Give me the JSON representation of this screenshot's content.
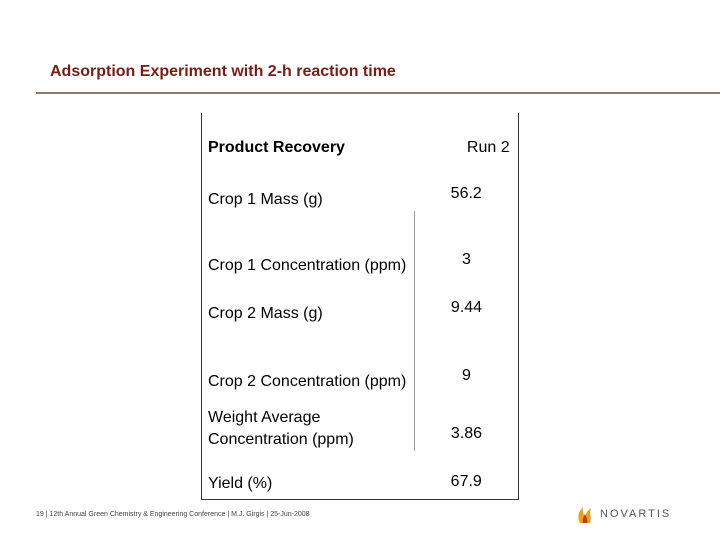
{
  "slide": {
    "title": "Adsorption Experiment with 2-h reaction time"
  },
  "table": {
    "header_label": "Product Recovery",
    "header_value": "Run 2",
    "rows": [
      {
        "label": "Crop 1 Mass (g)",
        "value": "56.2"
      },
      {
        "label": "Crop 1 Concentration (ppm)",
        "value": "3"
      },
      {
        "label": "Crop 2 Mass (g)",
        "value": "9.44"
      },
      {
        "label": "Crop 2 Concentration (ppm)",
        "value": "9"
      },
      {
        "label": "Weight Average Concentration (ppm)",
        "value": "3.86"
      },
      {
        "label": "Yield (%)",
        "value": "67.9"
      }
    ]
  },
  "footer": {
    "text": "19 | 12th Annual Green Chemistry & Engineering Conference | M.J. Girgis | 25-Jun-2008"
  },
  "brand": {
    "name": "NOVARTIS",
    "logo_icon": "novartis-flame-icon",
    "colors": {
      "flame_orange": "#e8a020",
      "flame_red": "#c0392b",
      "text": "#555555"
    }
  }
}
